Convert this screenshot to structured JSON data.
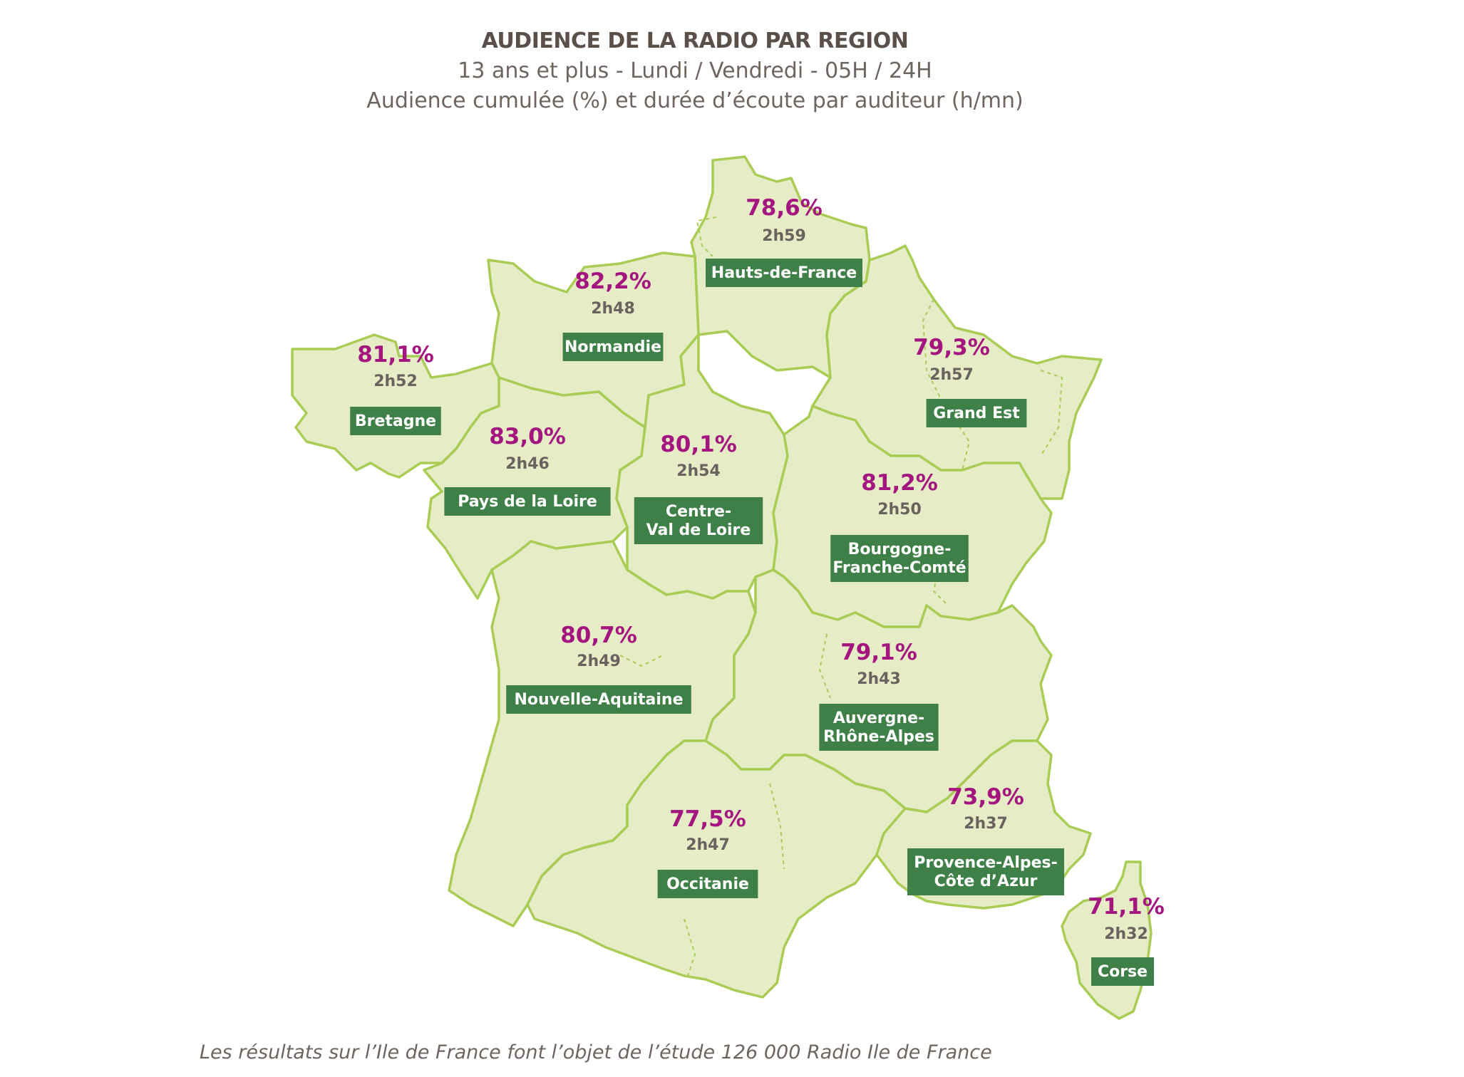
{
  "title": "AUDIENCE DE LA RADIO PAR REGION",
  "subtitle_line1": "13 ans et plus - Lundi / Vendredi - 05H / 24H",
  "subtitle_line2": "Audience cumulée (%) et durée d’écoute par auditeur (h/mn)",
  "footnote": "Les résultats sur l’Ile de France font l’objet de l’étude 126 000 Radio Ile de France",
  "colors": {
    "region_fill": "#e5ecc6",
    "region_border": "#a9cc55",
    "percentage": "#a4157f",
    "label_background": "#3f8048",
    "label_text": "#ffffff"
  },
  "regions": [
    {
      "id": "hauts-de-france",
      "name_lines": [
        "Hauts-de-France"
      ],
      "audience": "78,6%",
      "duration": "2h59"
    },
    {
      "id": "normandie",
      "name_lines": [
        "Normandie"
      ],
      "audience": "82,2%",
      "duration": "2h48"
    },
    {
      "id": "bretagne",
      "name_lines": [
        "Bretagne"
      ],
      "audience": "81,1%",
      "duration": "2h52"
    },
    {
      "id": "grand-est",
      "name_lines": [
        "Grand Est"
      ],
      "audience": "79,3%",
      "duration": "2h57"
    },
    {
      "id": "pays-de-la-loire",
      "name_lines": [
        "Pays de la Loire"
      ],
      "audience": "83,0%",
      "duration": "2h46"
    },
    {
      "id": "centre-val-de-loire",
      "name_lines": [
        "Centre-",
        "Val de Loire"
      ],
      "audience": "80,1%",
      "duration": "2h54"
    },
    {
      "id": "bourgogne-franche-comte",
      "name_lines": [
        "Bourgogne-",
        "Franche-Comté"
      ],
      "audience": "81,2%",
      "duration": "2h50"
    },
    {
      "id": "nouvelle-aquitaine",
      "name_lines": [
        "Nouvelle-Aquitaine"
      ],
      "audience": "80,7%",
      "duration": "2h49"
    },
    {
      "id": "auvergne-rhone-alpes",
      "name_lines": [
        "Auvergne-",
        "Rhône-Alpes"
      ],
      "audience": "79,1%",
      "duration": "2h43"
    },
    {
      "id": "occitanie",
      "name_lines": [
        "Occitanie"
      ],
      "audience": "77,5%",
      "duration": "2h47"
    },
    {
      "id": "provence-alpes-cote-d-azur",
      "name_lines": [
        "Provence-Alpes-",
        "Côte d’Azur"
      ],
      "audience": "73,9%",
      "duration": "2h37"
    },
    {
      "id": "corse",
      "name_lines": [
        "Corse"
      ],
      "audience": "71,1%",
      "duration": "2h32"
    }
  ]
}
